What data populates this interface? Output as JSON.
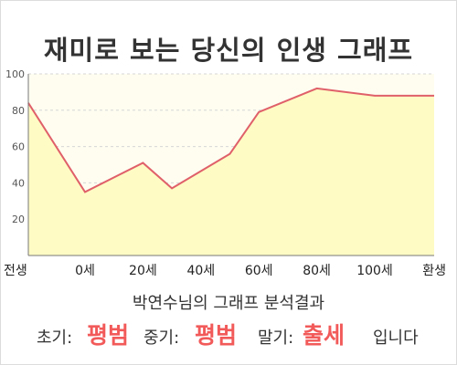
{
  "title": "재미로 보는 당신의 인생 그래프",
  "chart_data": {
    "type": "area",
    "title": "재미로 보는 당신의 인생 그래프",
    "xlabel": "",
    "ylabel": "",
    "x_tick_labels": [
      "전생",
      "0세",
      "20세",
      "40세",
      "60세",
      "80세",
      "100세",
      "환생"
    ],
    "y_ticks": [
      20,
      40,
      60,
      80,
      100
    ],
    "ylim": [
      0,
      100
    ],
    "grid": true,
    "series": [
      {
        "x": [
          "전생",
          "0세",
          "20세",
          "30세",
          "50세",
          "60세",
          "80세",
          "100세",
          "환생"
        ],
        "values": [
          84,
          35,
          51,
          37,
          56,
          79,
          92,
          88,
          88
        ]
      }
    ],
    "colors": {
      "line": "#e0606a",
      "fill": "#fffbc4",
      "background_top": "#fffdf0",
      "grid": "#d6d6d6",
      "axis": "#777777"
    }
  },
  "analysis": {
    "heading": "박연수님의 그래프 분석결과",
    "early_label": "초기:",
    "early_value": "평범",
    "middle_label": "중기:",
    "middle_value": "평범",
    "late_label": "말기:",
    "late_value": "출세",
    "suffix": "입니다"
  }
}
